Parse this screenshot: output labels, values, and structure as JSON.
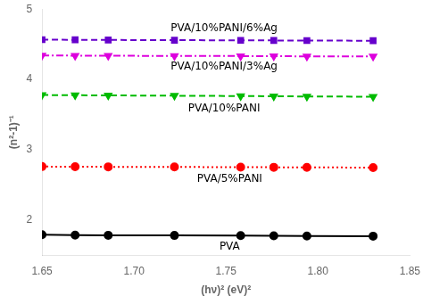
{
  "chart_data": {
    "type": "line",
    "x_label": "(hν)² (eV)²",
    "y_label": "(n²-1)⁻¹",
    "xlim": [
      1.65,
      1.85
    ],
    "ylim": [
      1.5,
      5.0
    ],
    "xticks": [
      1.65,
      {
        "value": 1.7,
        "label": "1.70"
      },
      1.75,
      {
        "value": 1.8,
        "label": "1.80"
      },
      1.85
    ],
    "yticks": [
      2,
      3,
      4,
      5
    ],
    "grid": false,
    "series": [
      {
        "name": "PVA",
        "color": "#000000",
        "marker": "circle",
        "line_style": "solid",
        "x": [
          1.65,
          1.668,
          1.686,
          1.722,
          1.758,
          1.776,
          1.794,
          1.83
        ],
        "values": [
          1.79,
          1.785,
          1.783,
          1.78,
          1.778,
          1.775,
          1.773,
          1.77
        ]
      },
      {
        "name": "PVA/5%PANI",
        "color": "#ff0000",
        "marker": "circle",
        "line_style": "dotted",
        "x": [
          1.65,
          1.668,
          1.686,
          1.722,
          1.758,
          1.776,
          1.794,
          1.83
        ],
        "values": [
          2.76,
          2.758,
          2.756,
          2.754,
          2.752,
          2.75,
          2.748,
          2.746
        ]
      },
      {
        "name": "PVA/10%PANI",
        "color": "#00bb00",
        "marker": "triangle-down",
        "line_style": "dashed",
        "x": [
          1.65,
          1.668,
          1.686,
          1.722,
          1.758,
          1.776,
          1.794,
          1.83
        ],
        "values": [
          3.778,
          3.775,
          3.772,
          3.768,
          3.763,
          3.76,
          3.757,
          3.754
        ]
      },
      {
        "name": "PVA/10%PANI/3%Ag",
        "color": "#dd00dd",
        "marker": "triangle-down",
        "line_style": "dashdot",
        "x": [
          1.65,
          1.668,
          1.686,
          1.722,
          1.758,
          1.776,
          1.794,
          1.83
        ],
        "values": [
          4.34,
          4.338,
          4.336,
          4.334,
          4.332,
          4.33,
          4.328,
          4.326
        ]
      },
      {
        "name": "PVA/10%PANI/6%Ag",
        "color": "#6600cc",
        "marker": "square",
        "line_style": "dashed",
        "x": [
          1.65,
          1.668,
          1.686,
          1.722,
          1.758,
          1.776,
          1.794,
          1.83
        ],
        "values": [
          4.565,
          4.563,
          4.561,
          4.558,
          4.556,
          4.554,
          4.552,
          4.55
        ]
      }
    ],
    "annotations": [
      {
        "text": "PVA",
        "x": 1.752,
        "y": 1.615
      },
      {
        "text": "PVA/5%PANI",
        "x": 1.752,
        "y": 2.58
      },
      {
        "text": "PVA/10%PANI",
        "x": 1.749,
        "y": 3.58
      },
      {
        "text": "PVA/10%PANI/3%Ag",
        "x": 1.749,
        "y": 4.18
      },
      {
        "text": "PVA/10%PANI/6%Ag",
        "x": 1.749,
        "y": 4.73
      }
    ]
  }
}
